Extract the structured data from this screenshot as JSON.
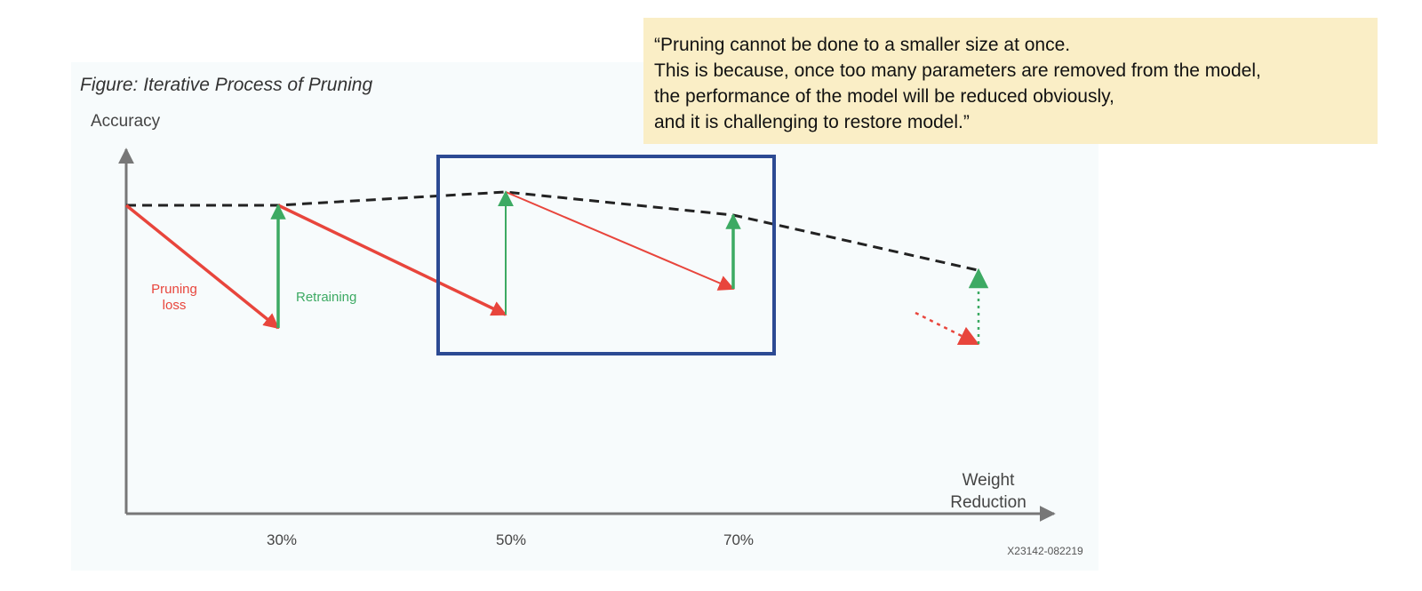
{
  "figure": {
    "title": "Figure: Iterative Process of Pruning",
    "y_axis_label": "Accuracy",
    "x_axis_label_line1": "Weight",
    "x_axis_label_line2": "Reduction",
    "pruning_label_line1": "Pruning",
    "pruning_label_line2": "loss",
    "retraining_label": "Retraining",
    "ticks": [
      "30%",
      "50%",
      "70%"
    ],
    "figure_code": "X23142-082219",
    "colors": {
      "pruning": "#e8453c",
      "retraining": "#3daa63",
      "envelope": "#222222",
      "axis": "#777777",
      "highlight": "#2c4a93",
      "quote_background": "#faeec6"
    },
    "icons": [
      "arrow-up-icon",
      "arrow-right-icon",
      "arrow-down-right-icon"
    ]
  },
  "quote": {
    "lines": [
      "“Pruning cannot be done to a smaller size at once.",
      "This is because, once too many parameters are removed from the model,",
      "the performance of the model will be reduced obviously,",
      "and it is challenging to restore model.”"
    ]
  }
}
